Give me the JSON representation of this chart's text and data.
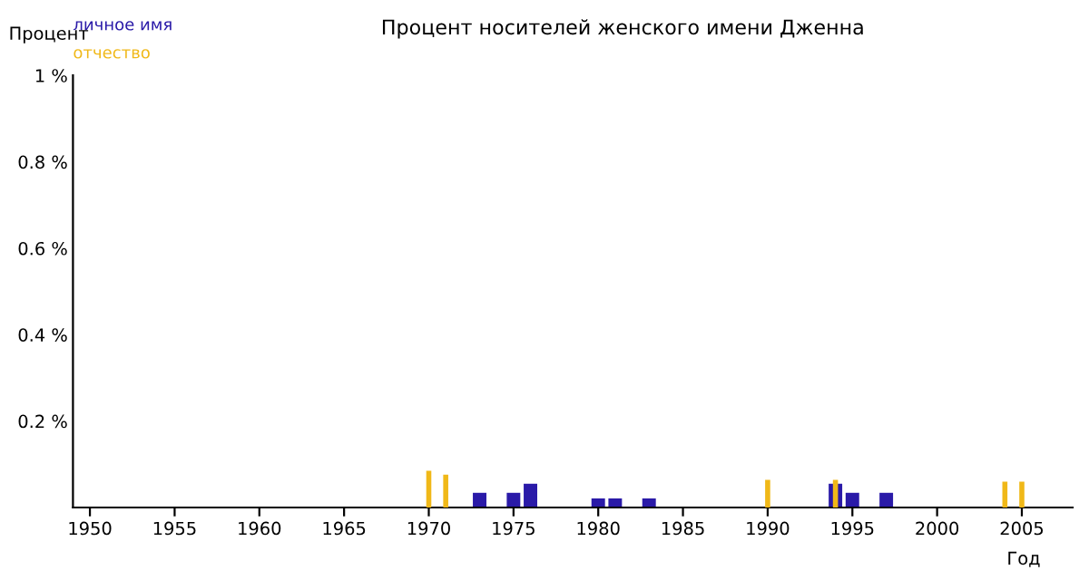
{
  "chart_data": {
    "type": "bar",
    "title": "Процент носителей женского имени Дженна",
    "xlabel": "Год",
    "ylabel": "Процент",
    "series": [
      {
        "name": "личное имя",
        "color": "#2a1aa8",
        "x": [
          1973,
          1975,
          1976,
          1980,
          1981,
          1983,
          1994,
          1995,
          1997
        ],
        "values": [
          0.034,
          0.034,
          0.055,
          0.021,
          0.021,
          0.021,
          0.055,
          0.034,
          0.034
        ]
      },
      {
        "name": "отчество",
        "color": "#f0b818",
        "x": [
          1970,
          1971,
          1990,
          1994,
          2004,
          2005
        ],
        "values": [
          0.085,
          0.076,
          0.064,
          0.064,
          0.06,
          0.06
        ]
      }
    ],
    "xlim": [
      1949,
      2008
    ],
    "xticks": [
      1950,
      1955,
      1960,
      1965,
      1970,
      1975,
      1980,
      1985,
      1990,
      1995,
      2000,
      2005
    ],
    "ylim": [
      0,
      1
    ],
    "yticks": [
      {
        "value": 0.2,
        "label": "0.2 %"
      },
      {
        "value": 0.4,
        "label": "0.4 %"
      },
      {
        "value": 0.6,
        "label": "0.6 %"
      },
      {
        "value": 0.8,
        "label": "0.8 %"
      },
      {
        "value": 1,
        "label": "1 %"
      }
    ],
    "grid": false,
    "legend": "top left"
  }
}
